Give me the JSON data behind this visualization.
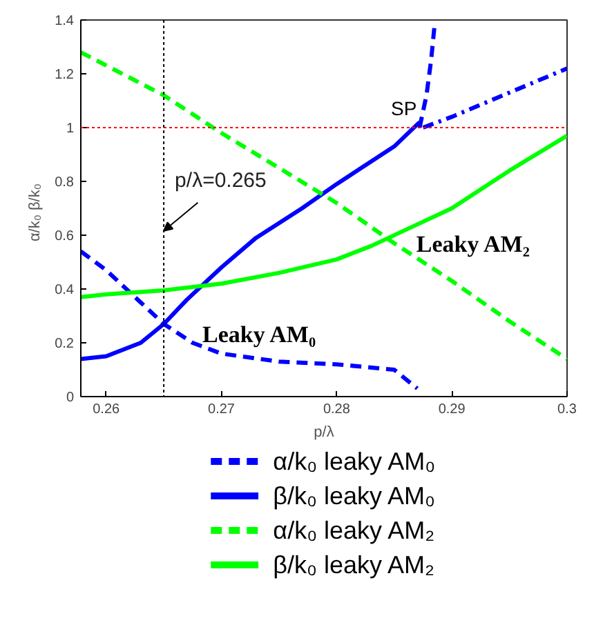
{
  "chart_data": {
    "type": "line",
    "xlabel": "p/λ",
    "ylabel": "α/k₀   β/k₀",
    "xlim": [
      0.2578,
      0.3
    ],
    "ylim": [
      0,
      1.4
    ],
    "xticks": [
      0.26,
      0.27,
      0.28,
      0.29,
      0.3
    ],
    "yticks": [
      0,
      0.2,
      0.4,
      0.6,
      0.8,
      1,
      1.2,
      1.4
    ],
    "grid": false,
    "legend": "bottom",
    "marker": "none",
    "series": [
      {
        "name": "α/k₀ leaky AM₀",
        "color": "#0000ff",
        "line_style": "dashed",
        "x": [
          0.2578,
          0.26,
          0.263,
          0.265,
          0.2675,
          0.27,
          0.275,
          0.28,
          0.285,
          0.287,
          null,
          0.2872,
          0.2878,
          0.2882,
          0.2885
        ],
        "values": [
          0.54,
          0.47,
          0.35,
          0.27,
          0.2,
          0.16,
          0.13,
          0.12,
          0.1,
          0.03,
          null,
          1.0,
          1.12,
          1.25,
          1.38
        ]
      },
      {
        "name": "β/k₀ leaky AM₀",
        "color": "#0000ff",
        "line_style": "solid",
        "x": [
          0.2578,
          0.26,
          0.263,
          0.265,
          0.267,
          0.27,
          0.273,
          0.277,
          0.28,
          0.285,
          0.2872
        ],
        "values": [
          0.14,
          0.15,
          0.2,
          0.27,
          0.36,
          0.48,
          0.59,
          0.7,
          0.79,
          0.93,
          1.02
        ]
      },
      {
        "color": "#0000ff",
        "line_style": "dashdot",
        "x": [
          0.2875,
          0.29,
          0.295,
          0.3
        ],
        "values": [
          1.0,
          1.04,
          1.13,
          1.22
        ]
      },
      {
        "name": "α/k₀ leaky AM₂",
        "color": "#00ff00",
        "line_style": "dashed",
        "x": [
          0.2578,
          0.265,
          0.27,
          0.275,
          0.28,
          0.285,
          0.29,
          0.295,
          0.3
        ],
        "values": [
          1.28,
          1.12,
          0.98,
          0.85,
          0.72,
          0.57,
          0.43,
          0.28,
          0.14
        ]
      },
      {
        "name": "β/k₀ leaky AM₂",
        "color": "#00ff00",
        "line_style": "solid",
        "x": [
          0.2578,
          0.26,
          0.265,
          0.27,
          0.275,
          0.28,
          0.283,
          0.287,
          0.29,
          0.295,
          0.3
        ],
        "values": [
          0.37,
          0.38,
          0.395,
          0.42,
          0.46,
          0.51,
          0.56,
          0.64,
          0.7,
          0.84,
          0.97
        ]
      }
    ],
    "ref_lines": [
      {
        "axis": "y",
        "value": 1,
        "color": "#ff0000",
        "line_style": "dotted"
      },
      {
        "axis": "x",
        "value": 0.265,
        "color": "#000000",
        "line_style": "dotted",
        "label": "p/λ=0.265"
      }
    ],
    "annotations": [
      {
        "text": "SP",
        "x": 0.2872,
        "y": 1.02
      },
      "Leaky AM₀",
      "Leaky AM₂"
    ]
  }
}
